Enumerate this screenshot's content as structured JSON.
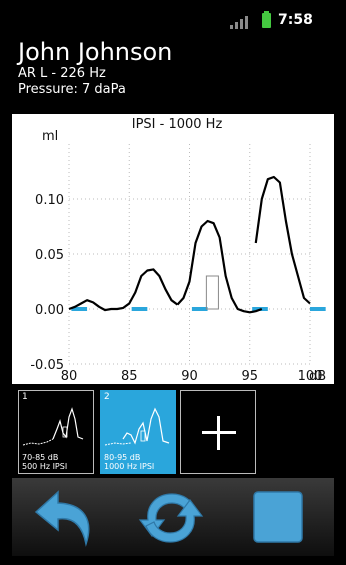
{
  "status_bar": {
    "time": "7:58",
    "icons": [
      "signal-bars-icon",
      "battery-icon"
    ],
    "battery_color": "#44c840"
  },
  "header": {
    "patient_name": "John Johnson",
    "probe_line": "AR L - 226 Hz",
    "pressure_line": "Pressure: 7 daPa"
  },
  "chart_data": {
    "type": "line",
    "title": "IPSI - 1000 Hz",
    "ylabel": "ml",
    "xlabel": "dB",
    "xlim": [
      80,
      100
    ],
    "ylim": [
      -0.05,
      0.15
    ],
    "x_ticks": [
      80,
      85,
      90,
      95,
      100
    ],
    "y_ticks": [
      -0.05,
      0.0,
      0.05,
      0.1
    ],
    "x_tick_labels": [
      "80",
      "85",
      "90",
      "95",
      "100"
    ],
    "y_tick_labels": [
      "-0.05",
      "0.00",
      "0.05",
      "0.10"
    ],
    "grid": true,
    "series_color": "#000000",
    "stimulus_color": "#2aa6dc",
    "segments": [
      {
        "x": [
          80.0,
          80.5,
          81.0,
          81.5,
          82.0,
          82.5,
          83.0,
          83.5,
          84.0,
          84.5,
          85.0,
          85.5,
          86.0,
          86.5,
          87.0,
          87.5,
          88.0,
          88.5,
          89.0
        ],
        "y": [
          0.0,
          0.002,
          0.005,
          0.008,
          0.006,
          0.002,
          -0.001,
          0.0,
          0.0,
          0.001,
          0.005,
          0.015,
          0.03,
          0.035,
          0.036,
          0.03,
          0.018,
          0.008,
          0.004
        ]
      },
      {
        "x": [
          89.0,
          89.5,
          90.0,
          90.5,
          91.0,
          91.5,
          92.0,
          92.5,
          93.0,
          93.5,
          94.0,
          94.5,
          95.0,
          95.5,
          96.0
        ],
        "y": [
          0.004,
          0.01,
          0.025,
          0.06,
          0.075,
          0.08,
          0.078,
          0.065,
          0.03,
          0.01,
          0.0,
          -0.002,
          -0.003,
          -0.002,
          0.0
        ]
      },
      {
        "x": [
          95.5,
          96.0,
          96.5,
          97.0,
          97.5,
          98.0,
          98.5,
          99.0,
          99.5,
          100.0
        ],
        "y": [
          0.06,
          0.1,
          0.118,
          0.12,
          0.115,
          0.08,
          0.05,
          0.03,
          0.01,
          0.005
        ]
      }
    ],
    "stimulus_bars": [
      [
        80.2,
        81.5
      ],
      [
        85.2,
        86.5
      ],
      [
        90.2,
        91.5
      ],
      [
        95.2,
        96.5
      ],
      [
        100.0,
        101.3
      ]
    ],
    "reference_box": {
      "x": [
        91.4,
        92.4
      ],
      "y": [
        0.0,
        0.03
      ]
    }
  },
  "thumbnails": [
    {
      "index": "1",
      "line1": "70-85 dB",
      "line2": "500 Hz IPSI",
      "selected": false
    },
    {
      "index": "2",
      "line1": "80-95 dB",
      "line2": "1000 Hz IPSI",
      "selected": true
    }
  ],
  "add_tile": {
    "icon": "plus-icon"
  },
  "selected_color": "#2aa6dc",
  "toolbar": {
    "buttons": [
      {
        "icon": "back-arrow-icon"
      },
      {
        "icon": "repeat-icon"
      },
      {
        "icon": "stop-icon"
      }
    ],
    "icon_color": "#4aa3d6"
  }
}
